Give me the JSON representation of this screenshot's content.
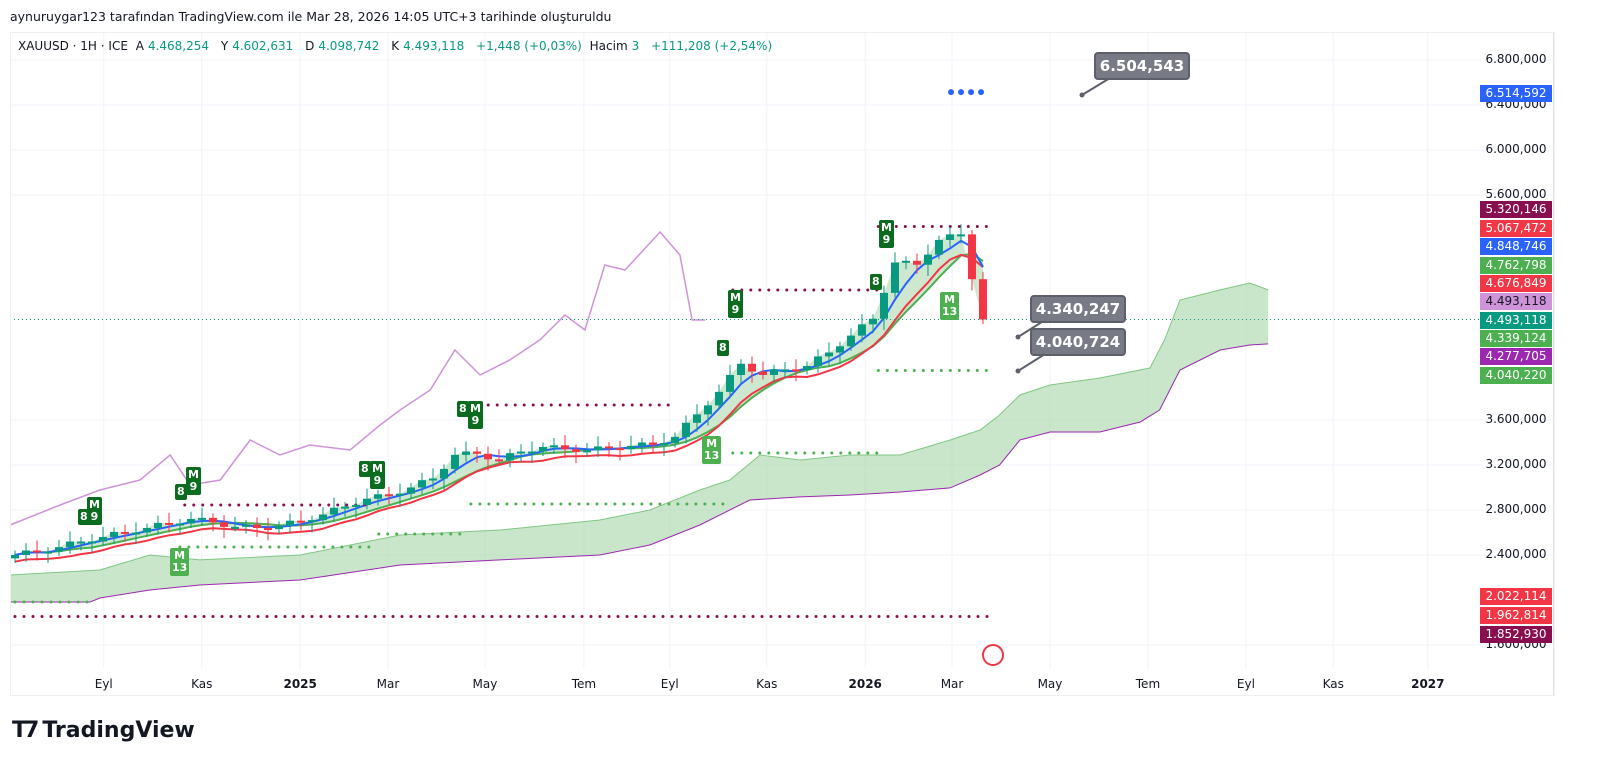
{
  "caption": "aynuruygar123 tarafından TradingView.com ile Mar 28, 2026 14:05 UTC+3 tarihinde oluşturuldu",
  "legend": {
    "symbol": "XAUUSD · 1H · ICE",
    "open_label": "A",
    "open": "4.468,254",
    "high_label": "Y",
    "high": "4.602,631",
    "low_label": "D",
    "low": "4.098,742",
    "close_label": "K",
    "close": "4.493,118",
    "change": "+1,448 (+0,03%)",
    "volume_label": "Hacim",
    "volume_length": "3",
    "volume_change": "+111,208 (+2,54%)"
  },
  "price_axis": {
    "ticks": [
      "6.800,000",
      "6.400,000",
      "6.000,000",
      "5.600,000",
      "3.600,000",
      "3.200,000",
      "2.800,000",
      "2.400,000",
      "1.600,000"
    ],
    "tick_values": [
      6800,
      6400,
      6000,
      5600,
      3600,
      3200,
      2800,
      2400,
      1600
    ],
    "labels": [
      {
        "text": "6.514,592",
        "value": 6514.592,
        "color": "#2962ff",
        "text_color": "#ffffff"
      },
      {
        "text": "5.320,146",
        "value": 5320.146,
        "color": "#880e4f",
        "text_color": "#ffffff"
      },
      {
        "text": "5.067,472",
        "value": 5067.472,
        "color": "#f23645",
        "text_color": "#ffffff"
      },
      {
        "text": "4.848,746",
        "value": 4848.746,
        "color": "#2962ff",
        "text_color": "#ffffff"
      },
      {
        "text": "4.762,798",
        "value": 4762.798,
        "color": "#4caf50",
        "text_color": "#ffffff"
      },
      {
        "text": "4.676,849",
        "value": 4676.849,
        "color": "#f23645",
        "text_color": "#ffffff"
      },
      {
        "text": "4.493,118",
        "value": 4493.118,
        "color": "#ce93d8",
        "text_color": "#131722"
      },
      {
        "text": "4.493,118",
        "value": 4493.118,
        "color": "#089981",
        "text_color": "#ffffff"
      },
      {
        "text": "4.339,124",
        "value": 4339.124,
        "color": "#4caf50",
        "text_color": "#ffffff"
      },
      {
        "text": "4.277,705",
        "value": 4277.705,
        "color": "#9c27b0",
        "text_color": "#ffffff"
      },
      {
        "text": "4.040,220",
        "value": 4040.22,
        "color": "#4caf50",
        "text_color": "#ffffff"
      },
      {
        "text": "2.022,114",
        "value": 2022.114,
        "color": "#f23645",
        "text_color": "#ffffff"
      },
      {
        "text": "1.962,814",
        "value": 1962.814,
        "color": "#f23645",
        "text_color": "#ffffff"
      },
      {
        "text": "1.852,930",
        "value": 1852.93,
        "color": "#880e4f",
        "text_color": "#ffffff"
      }
    ]
  },
  "time_axis": [
    {
      "text": "Eyl",
      "t": 1.83
    },
    {
      "text": "Kas",
      "t": 3.85
    },
    {
      "text": "2025",
      "t": 5.88,
      "bold": true
    },
    {
      "text": "Mar",
      "t": 7.69
    },
    {
      "text": "May",
      "t": 9.69
    },
    {
      "text": "Tem",
      "t": 11.73
    },
    {
      "text": "Eyl",
      "t": 13.5
    },
    {
      "text": "Kas",
      "t": 15.5
    },
    {
      "text": "2026",
      "t": 17.53,
      "bold": true
    },
    {
      "text": "Mar",
      "t": 19.32
    },
    {
      "text": "May",
      "t": 21.34
    },
    {
      "text": "Tem",
      "t": 23.36
    },
    {
      "text": "Eyl",
      "t": 25.38
    },
    {
      "text": "Kas",
      "t": 27.18
    },
    {
      "text": "2027",
      "t": 29.13,
      "bold": true
    }
  ],
  "callouts": [
    {
      "text": "6.504,543"
    },
    {
      "text": "4.340,247"
    },
    {
      "text": "4.040,724"
    }
  ],
  "badges": [
    "8",
    "M\n9",
    "8",
    "M\n9",
    "8",
    "M\n9",
    "8",
    "M\n9",
    "8",
    "M\n9",
    "8",
    "M\n9",
    "M\n13",
    "M\n13",
    "M\n13"
  ],
  "brand": "TradingView",
  "colors": {
    "up": "#089981",
    "down": "#f23645",
    "blue": "#2962ff",
    "red": "#f23645",
    "green": "#4caf50",
    "pink": "#ce93d8",
    "cloud": "#a5d6a7",
    "cloud_edge": "#9c27b0",
    "maroon": "#880e4f"
  },
  "chart_data": {
    "type": "candlestick",
    "title": "XAUUSD · 1H · ICE",
    "x_unit": "months since mid-Jul 2024",
    "candle_step_months": 0.4536,
    "closes": [
      2400,
      2430,
      2470,
      2520,
      2560,
      2600,
      2640,
      2680,
      2720,
      2690,
      2650,
      2640,
      2660,
      2700,
      2760,
      2830,
      2900,
      2930,
      3000,
      3080,
      3290,
      3300,
      3240,
      3320,
      3360,
      3340,
      3330,
      3350,
      3370,
      3380,
      3450,
      3650,
      3850,
      4100,
      4000,
      4050,
      4080,
      4200,
      4350,
      4500,
      5000,
      4980,
      5200,
      5250,
      4493
    ],
    "ylim": [
      1550,
      6950
    ],
    "comparison_line": [
      [
        -0.1,
        2667
      ],
      [
        0.93,
        2844
      ],
      [
        1.75,
        2978
      ],
      [
        2.58,
        3067
      ],
      [
        3.2,
        3289
      ],
      [
        3.61,
        3022
      ],
      [
        4.23,
        3067
      ],
      [
        4.85,
        3422
      ],
      [
        5.46,
        3289
      ],
      [
        6.08,
        3378
      ],
      [
        6.91,
        3333
      ],
      [
        7.53,
        3556
      ],
      [
        7.94,
        3689
      ],
      [
        8.56,
        3867
      ],
      [
        9.07,
        4222
      ],
      [
        9.59,
        4000
      ],
      [
        10.2,
        4133
      ],
      [
        10.82,
        4311
      ],
      [
        11.34,
        4533
      ],
      [
        11.75,
        4400
      ],
      [
        12.16,
        4978
      ],
      [
        12.58,
        4933
      ],
      [
        13.3,
        5271
      ],
      [
        13.71,
        5067
      ],
      [
        13.96,
        4489
      ],
      [
        14.23,
        4489
      ]
    ],
    "cloud_upper": [
      [
        -0.1,
        2222
      ],
      [
        1.75,
        2267
      ],
      [
        2.78,
        2400
      ],
      [
        3.81,
        2356
      ],
      [
        5.88,
        2400
      ],
      [
        7.94,
        2578
      ],
      [
        10,
        2622
      ],
      [
        12.06,
        2711
      ],
      [
        13.09,
        2800
      ],
      [
        14.12,
        2978
      ],
      [
        14.74,
        3067
      ],
      [
        15.36,
        3289
      ],
      [
        16.19,
        3244
      ],
      [
        17.22,
        3289
      ],
      [
        18.25,
        3289
      ],
      [
        19.28,
        3422
      ],
      [
        19.9,
        3511
      ],
      [
        20.3,
        3644
      ],
      [
        20.72,
        3822
      ],
      [
        21.34,
        3911
      ],
      [
        22.37,
        3973
      ],
      [
        23.4,
        4062
      ],
      [
        23.7,
        4311
      ],
      [
        24.02,
        4667
      ],
      [
        24.85,
        4756
      ],
      [
        25.46,
        4818
      ],
      [
        25.84,
        4756
      ]
    ],
    "cloud_lower": [
      [
        -0.1,
        1982
      ],
      [
        1.55,
        1982
      ],
      [
        1.75,
        2018
      ],
      [
        2.78,
        2089
      ],
      [
        3.81,
        2133
      ],
      [
        5.88,
        2178
      ],
      [
        7.94,
        2311
      ],
      [
        10,
        2356
      ],
      [
        12.06,
        2400
      ],
      [
        13.09,
        2489
      ],
      [
        14.12,
        2667
      ],
      [
        15.15,
        2889
      ],
      [
        16.19,
        2916
      ],
      [
        17.22,
        2933
      ],
      [
        18.25,
        2960
      ],
      [
        19.28,
        2996
      ],
      [
        19.9,
        3111
      ],
      [
        20.3,
        3200
      ],
      [
        20.72,
        3422
      ],
      [
        21.34,
        3493
      ],
      [
        22.37,
        3493
      ],
      [
        23.2,
        3582
      ],
      [
        23.6,
        3689
      ],
      [
        24.02,
        4044
      ],
      [
        24.85,
        4222
      ],
      [
        25.46,
        4267
      ],
      [
        25.84,
        4276
      ]
    ],
    "levels": [
      {
        "price": 2844,
        "from": 3.5,
        "to": 7.3,
        "color": "#880e4f"
      },
      {
        "price": 3733,
        "from": 9.2,
        "to": 13.5,
        "color": "#880e4f"
      },
      {
        "price": 4756,
        "from": 14.8,
        "to": 17.8,
        "color": "#880e4f"
      },
      {
        "price": 5320,
        "from": 17.8,
        "to": 20.1,
        "color": "#880e4f"
      },
      {
        "price": 1853,
        "from": 0,
        "to": 20.1,
        "color": "#880e4f"
      },
      {
        "price": 2471,
        "from": 3.4,
        "to": 7.3,
        "color": "#4caf50"
      },
      {
        "price": 2587,
        "from": 7.5,
        "to": 9.3,
        "color": "#4caf50"
      },
      {
        "price": 2853,
        "from": 9.4,
        "to": 14.7,
        "color": "#4caf50"
      },
      {
        "price": 3307,
        "from": 14.8,
        "to": 17.8,
        "color": "#4caf50"
      },
      {
        "price": 4040,
        "from": 17.8,
        "to": 20.1,
        "color": "#4caf50"
      },
      {
        "price": 1982,
        "from": 0,
        "to": 1.55,
        "color": "#4caf50"
      },
      {
        "price": 6514,
        "from": 19.3,
        "to": 20.1,
        "color": "#2962ff"
      }
    ]
  }
}
